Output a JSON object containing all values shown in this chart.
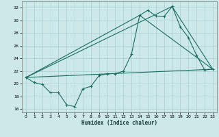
{
  "xlabel": "Humidex (Indice chaleur)",
  "bg_color": "#cce8e8",
  "grid_color": "#aacfcf",
  "line_color": "#1a6b60",
  "xlim": [
    -0.5,
    23.5
  ],
  "ylim": [
    15.5,
    33.0
  ],
  "yticks": [
    16,
    18,
    20,
    22,
    24,
    26,
    28,
    30,
    32
  ],
  "xticks": [
    0,
    1,
    2,
    3,
    4,
    5,
    6,
    7,
    8,
    9,
    10,
    11,
    12,
    13,
    14,
    15,
    16,
    17,
    18,
    19,
    20,
    21,
    22,
    23
  ],
  "line1_x": [
    0,
    1,
    2,
    3,
    4,
    5,
    6,
    7,
    8,
    9,
    10,
    11,
    12,
    13,
    14,
    15,
    16,
    17,
    18,
    19,
    20,
    21,
    22,
    23
  ],
  "line1_y": [
    21.0,
    20.2,
    19.9,
    18.6,
    18.6,
    16.7,
    16.4,
    19.2,
    19.6,
    21.3,
    21.6,
    21.6,
    22.0,
    24.7,
    30.8,
    31.6,
    30.7,
    30.6,
    32.2,
    29.0,
    27.3,
    24.5,
    22.2,
    22.3
  ],
  "line2_x": [
    0,
    23
  ],
  "line2_y": [
    21.0,
    22.3
  ],
  "line3_x": [
    0,
    14,
    23
  ],
  "line3_y": [
    21.0,
    30.8,
    22.3
  ],
  "line4_x": [
    0,
    18,
    23
  ],
  "line4_y": [
    21.0,
    32.2,
    22.3
  ]
}
